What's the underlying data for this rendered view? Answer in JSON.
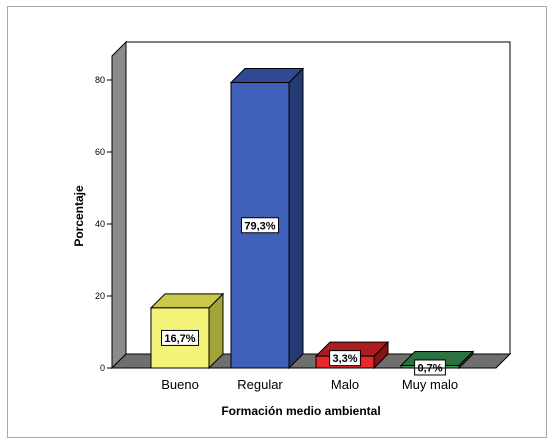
{
  "chart_data": {
    "type": "bar",
    "title": "",
    "xlabel": "Formación medio ambiental",
    "ylabel": "Porcentaje",
    "ylim": [
      0,
      80
    ],
    "yticks": [
      "0",
      "20",
      "40",
      "60",
      "80"
    ],
    "categories": [
      "Bueno",
      "Regular",
      "Malo",
      "Muy malo"
    ],
    "values": [
      16.7,
      79.3,
      3.3,
      0.7
    ],
    "data_labels": [
      "16,7%",
      "79,3%",
      "3,3%",
      "0,7%"
    ],
    "style": "3d",
    "grid": false,
    "legend": "none",
    "colors": {
      "bars": [
        "#f5f47a",
        "#3f5fb9",
        "#e8282e",
        "#3d9a54"
      ],
      "bar_tops": [
        "#c9c84a",
        "#2f4a93",
        "#ad1d20",
        "#2c7240"
      ],
      "bar_sides": [
        "#a4a337",
        "#253a74",
        "#861316",
        "#1f5630"
      ],
      "floor": "#6f6f6f",
      "back_wall": "#ffffff",
      "side_wall": "#8c8c8c",
      "frame": "#a7a7a7"
    }
  }
}
